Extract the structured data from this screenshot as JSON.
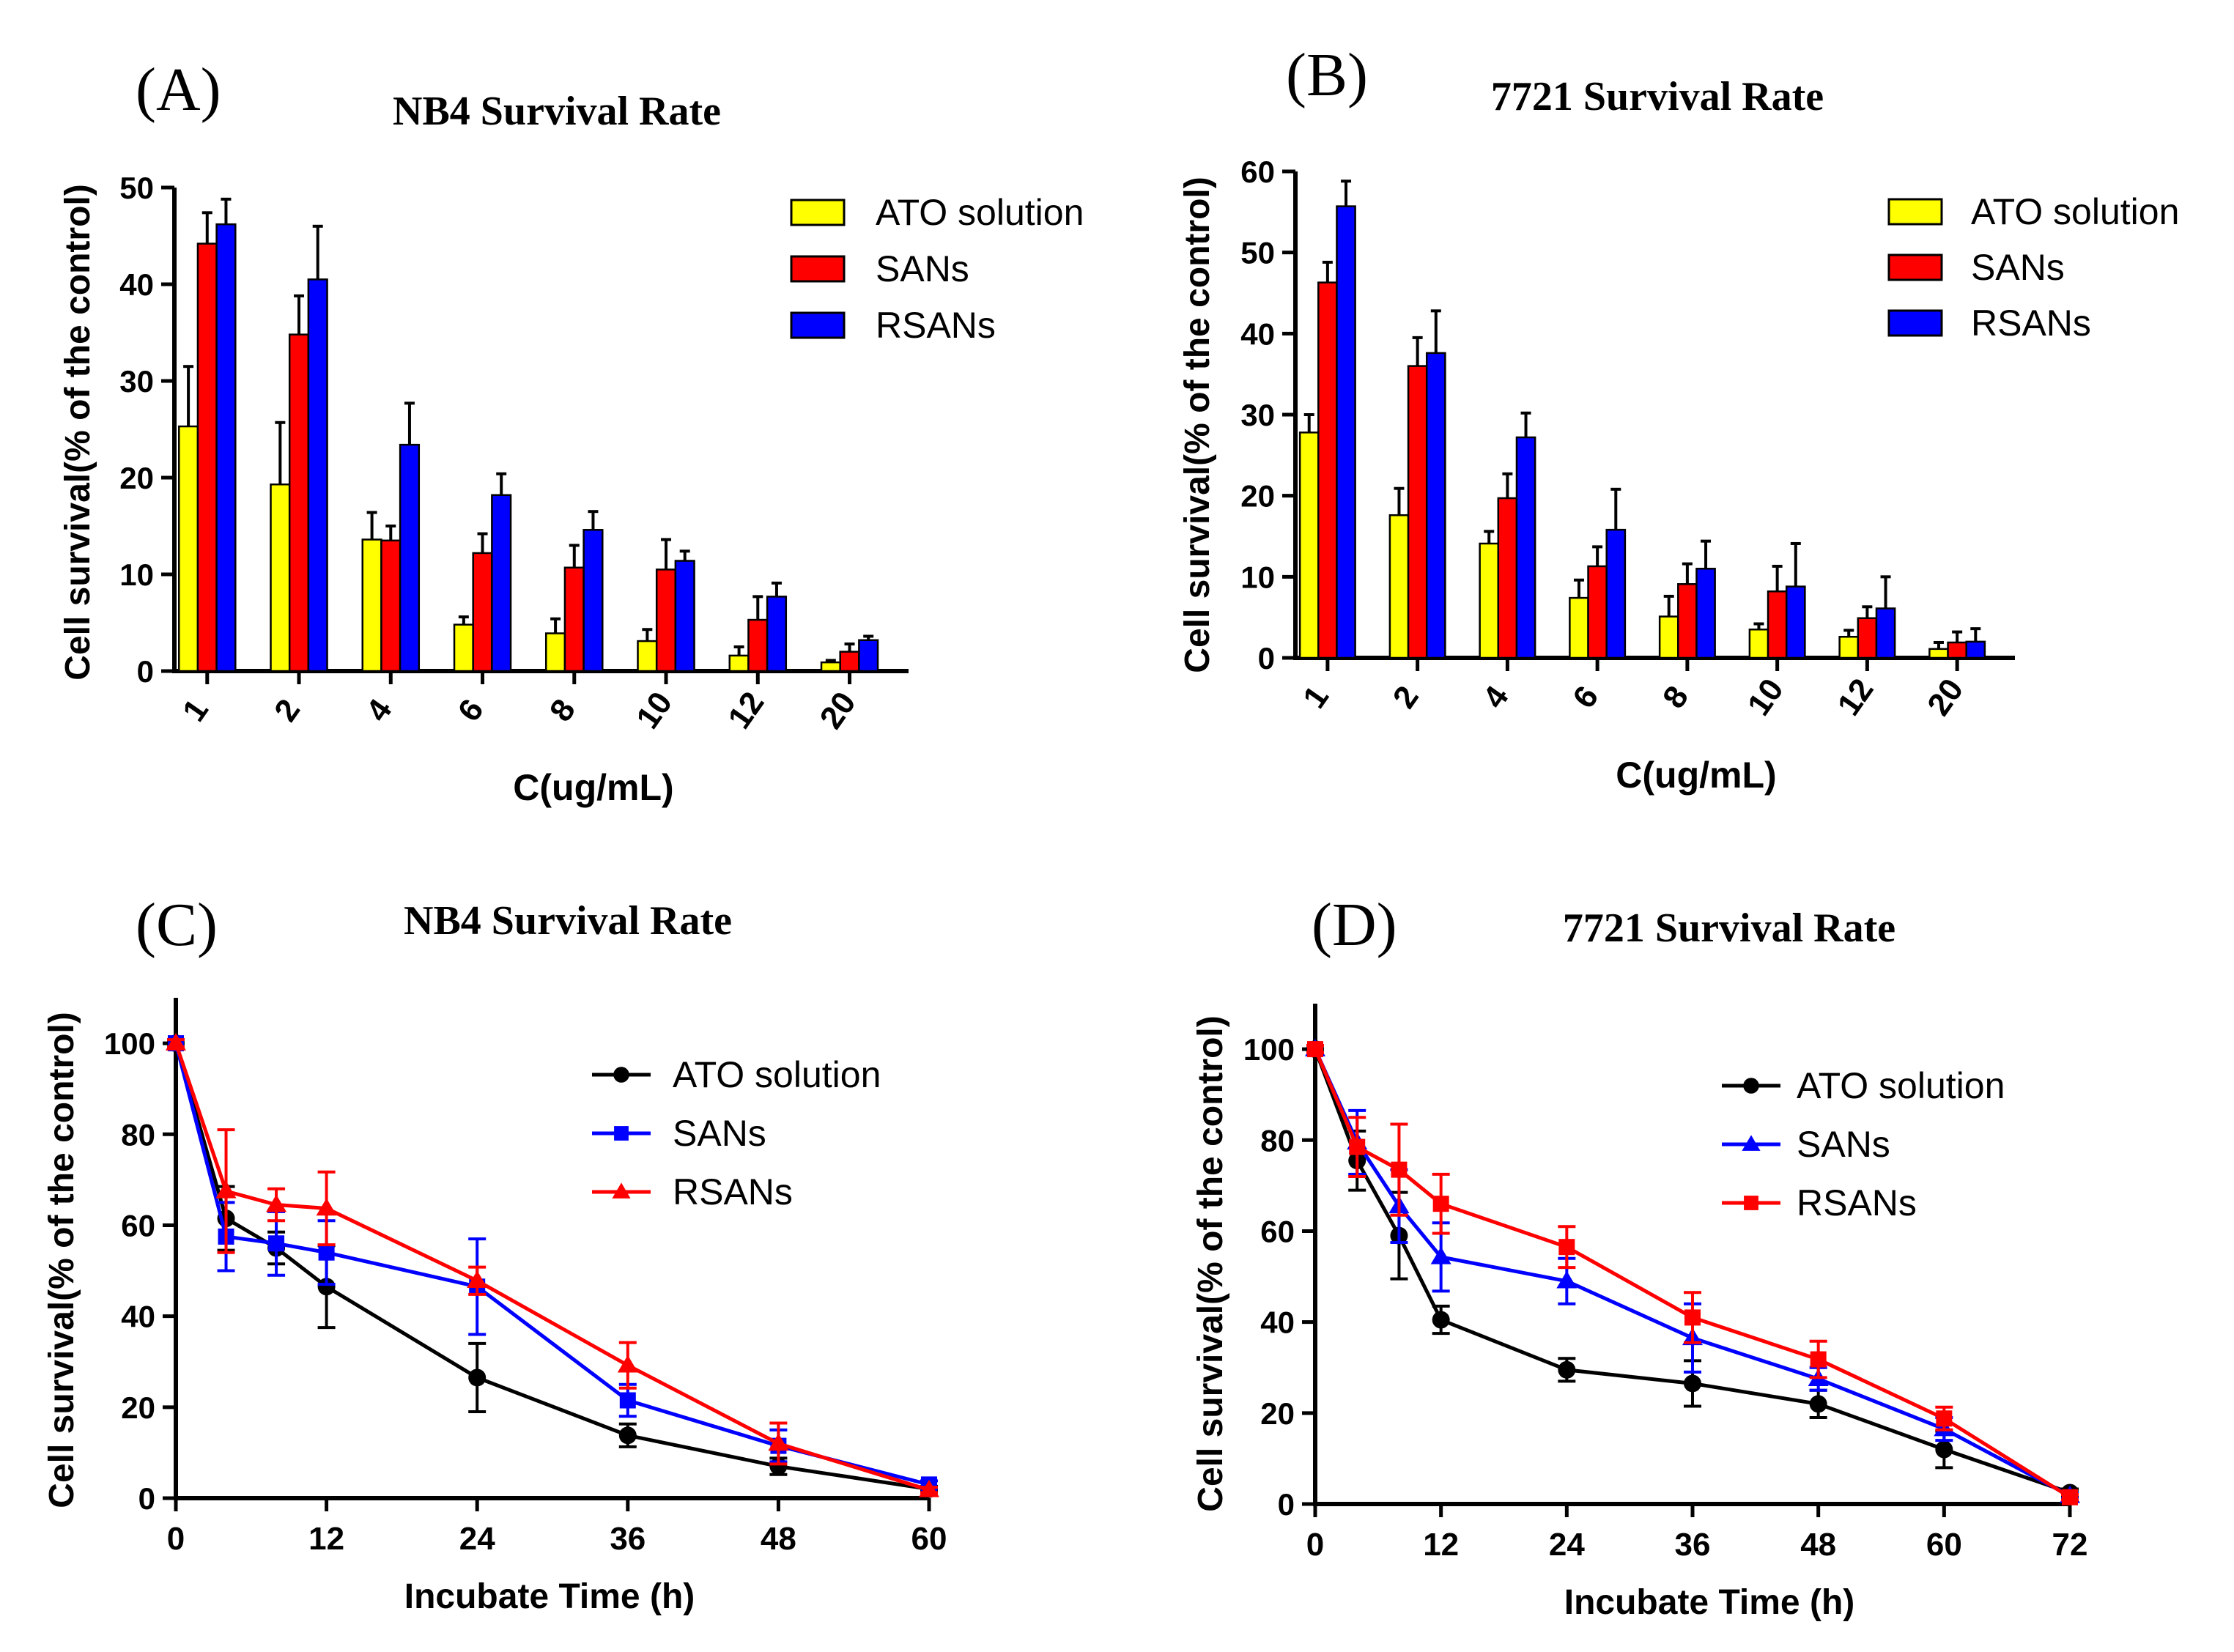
{
  "chart_data": [
    {
      "type": "bar",
      "panel_label": "(A)",
      "title": "NB4 Survival Rate",
      "xlabel": "C(ug/mL)",
      "ylabel": "Cell survival(% of the control)",
      "ylim": [
        0,
        50
      ],
      "yticks": [
        0,
        10,
        20,
        30,
        40,
        50
      ],
      "categories": [
        "1",
        "2",
        "4",
        "6",
        "8",
        "10",
        "12",
        "20"
      ],
      "legend_position": "top-right",
      "series": [
        {
          "name": "ATO solution",
          "color": "#ffff00",
          "values": [
            25.3,
            19.3,
            13.6,
            4.8,
            3.9,
            3.1,
            1.6,
            0.9
          ],
          "errors": [
            6.2,
            6.4,
            2.8,
            0.8,
            1.5,
            1.2,
            0.9,
            0.2
          ]
        },
        {
          "name": "SANs",
          "color": "#ff0000",
          "values": [
            44.2,
            34.8,
            13.5,
            12.2,
            10.7,
            10.5,
            5.3,
            2.0
          ],
          "errors": [
            3.2,
            4.0,
            1.5,
            2.0,
            2.3,
            3.1,
            2.4,
            0.8
          ]
        },
        {
          "name": "RSANs",
          "color": "#0000ff",
          "values": [
            46.2,
            40.5,
            23.4,
            18.2,
            14.6,
            11.4,
            7.7,
            3.2
          ],
          "errors": [
            2.6,
            5.5,
            4.3,
            2.2,
            1.9,
            1.0,
            1.4,
            0.4
          ]
        }
      ]
    },
    {
      "type": "bar",
      "panel_label": "(B)",
      "title": "7721 Survival Rate",
      "xlabel": "C(ug/mL)",
      "ylabel": "Cell survival(% of the control)",
      "ylim": [
        0,
        60
      ],
      "yticks": [
        0,
        10,
        20,
        30,
        40,
        50,
        60
      ],
      "categories": [
        "1",
        "2",
        "4",
        "6",
        "8",
        "10",
        "12",
        "20"
      ],
      "legend_position": "top-right",
      "series": [
        {
          "name": "ATO solution",
          "color": "#ffff00",
          "values": [
            27.8,
            17.6,
            14.1,
            7.4,
            5.1,
            3.5,
            2.6,
            1.1
          ],
          "errors": [
            2.2,
            3.3,
            1.5,
            2.2,
            2.5,
            0.7,
            0.8,
            0.8
          ]
        },
        {
          "name": "SANs",
          "color": "#ff0000",
          "values": [
            46.3,
            36.0,
            19.7,
            11.3,
            9.1,
            8.2,
            4.9,
            1.9
          ],
          "errors": [
            2.5,
            3.5,
            3.0,
            2.4,
            2.5,
            3.1,
            1.4,
            1.3
          ]
        },
        {
          "name": "RSANs",
          "color": "#0000ff",
          "values": [
            55.7,
            37.6,
            27.2,
            15.8,
            11.0,
            8.8,
            6.1,
            2.0
          ],
          "errors": [
            3.1,
            5.2,
            3.0,
            5.0,
            3.4,
            5.3,
            3.9,
            1.6
          ]
        }
      ]
    },
    {
      "type": "line",
      "panel_label": "(C)",
      "title": "NB4 Survival Rate",
      "xlabel": "Incubate Time (h)",
      "ylabel": "Cell survival(% of the control)",
      "xlim": [
        0,
        60
      ],
      "xticks": [
        0,
        12,
        24,
        36,
        48,
        60
      ],
      "ylim": [
        0,
        110
      ],
      "yticks": [
        0,
        20,
        40,
        60,
        80,
        100
      ],
      "x": [
        0,
        4,
        8,
        12,
        24,
        36,
        48,
        60
      ],
      "legend_position": "top-right",
      "series": [
        {
          "name": "ATO solution",
          "color": "#000000",
          "marker": "circle",
          "values": [
            100,
            61.5,
            55.0,
            46.5,
            26.5,
            13.8,
            7.0,
            2.0
          ],
          "errors": [
            0.8,
            7.0,
            3.5,
            9.0,
            7.5,
            2.5,
            1.8,
            0.6
          ]
        },
        {
          "name": "SANs",
          "color": "#0000ff",
          "marker": "square",
          "values": [
            100,
            57.5,
            56.0,
            54.0,
            46.5,
            21.5,
            11.5,
            3.0
          ],
          "errors": [
            0.8,
            7.5,
            7.0,
            7.0,
            10.5,
            3.5,
            3.5,
            0.8
          ]
        },
        {
          "name": "RSANs",
          "color": "#ff0000",
          "marker": "triangle",
          "values": [
            100,
            67.5,
            64.5,
            63.7,
            47.8,
            29.2,
            12.0,
            1.8
          ],
          "errors": [
            0.8,
            13.5,
            3.5,
            8.0,
            3.0,
            5.0,
            4.5,
            0.6
          ]
        }
      ]
    },
    {
      "type": "line",
      "panel_label": "(D)",
      "title": "7721 Survival Rate",
      "xlabel": "Incubate Time (h)",
      "ylabel": "Cell survival(% of the control)",
      "xlim": [
        0,
        72
      ],
      "xticks": [
        0,
        12,
        24,
        36,
        48,
        60,
        72
      ],
      "ylim": [
        0,
        110
      ],
      "yticks": [
        0,
        20,
        40,
        60,
        80,
        100
      ],
      "x": [
        0,
        4,
        8,
        12,
        24,
        36,
        48,
        60,
        72
      ],
      "legend_position": "top-right",
      "series": [
        {
          "name": "ATO solution",
          "color": "#000000",
          "marker": "circle",
          "values": [
            100,
            75.5,
            59.0,
            40.5,
            29.5,
            26.5,
            22.0,
            12.0,
            2.5
          ],
          "errors": [
            0.8,
            6.5,
            9.5,
            3.0,
            2.5,
            5.0,
            3.0,
            4.0,
            0.8
          ]
        },
        {
          "name": "SANs",
          "color": "#0000ff",
          "marker": "triangle",
          "values": [
            100,
            79.5,
            65.5,
            54.3,
            49.0,
            36.5,
            27.5,
            16.5,
            1.8
          ],
          "errors": [
            0.8,
            7.0,
            8.0,
            7.5,
            5.0,
            7.5,
            2.5,
            2.5,
            0.6
          ]
        },
        {
          "name": "RSANs",
          "color": "#ff0000",
          "marker": "square",
          "values": [
            100,
            78.5,
            73.5,
            66.0,
            56.5,
            41.0,
            31.8,
            18.8,
            1.5
          ],
          "errors": [
            0.8,
            6.5,
            10.0,
            6.5,
            4.5,
            5.5,
            4.0,
            2.5,
            0.6
          ]
        }
      ]
    }
  ]
}
